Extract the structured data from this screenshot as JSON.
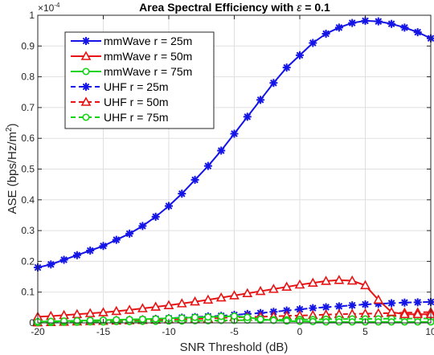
{
  "chart_data": {
    "type": "line",
    "title_prefix": "Area Spectral Efficiency  with ",
    "title_symbol": "ε",
    "title_suffix": " = 0.1",
    "xlabel": "SNR Threshold (dB)",
    "ylabel_main": "ASE (bps/Hz/m",
    "ylabel_sup": "2",
    "ylabel_close": ")",
    "y_multiplier_base": "×10",
    "y_multiplier_exp": "-4",
    "xlim": [
      -20,
      10
    ],
    "ylim": [
      0,
      1
    ],
    "xticks": [
      -20,
      -15,
      -10,
      -5,
      0,
      5,
      10
    ],
    "yticks": [
      0,
      0.1,
      0.2,
      0.3,
      0.4,
      0.5,
      0.6,
      0.7,
      0.8,
      0.9,
      1
    ],
    "ytick_labels": [
      "0",
      "0.1",
      "0.2",
      "0.3",
      "0.4",
      "0.5",
      "0.6",
      "0.7",
      "0.8",
      "0.9",
      "1"
    ],
    "grid": true,
    "legend_position": "top-left",
    "x": [
      -20,
      -19,
      -18,
      -17,
      -16,
      -15,
      -14,
      -13,
      -12,
      -11,
      -10,
      -9,
      -8,
      -7,
      -6,
      -5,
      -4,
      -3,
      -2,
      -1,
      0,
      1,
      2,
      3,
      4,
      5,
      6,
      7,
      8,
      9,
      10
    ],
    "series": [
      {
        "name": "mmWave r = 25m",
        "color": "#1414e6",
        "linestyle": "solid",
        "marker": "asterisk",
        "values": [
          0.18,
          0.19,
          0.205,
          0.22,
          0.235,
          0.25,
          0.27,
          0.29,
          0.315,
          0.345,
          0.38,
          0.42,
          0.465,
          0.51,
          0.56,
          0.615,
          0.67,
          0.725,
          0.78,
          0.83,
          0.87,
          0.91,
          0.94,
          0.96,
          0.975,
          0.982,
          0.98,
          0.972,
          0.96,
          0.945,
          0.925
        ]
      },
      {
        "name": "mmWave r = 50m",
        "color": "#e61414",
        "linestyle": "solid",
        "marker": "triangle",
        "values": [
          0.02,
          0.022,
          0.025,
          0.028,
          0.031,
          0.034,
          0.038,
          0.042,
          0.047,
          0.052,
          0.057,
          0.063,
          0.069,
          0.075,
          0.082,
          0.089,
          0.096,
          0.103,
          0.11,
          0.117,
          0.124,
          0.13,
          0.136,
          0.139,
          0.137,
          0.122,
          0.075,
          0.035,
          0.028,
          0.028,
          0.028
        ]
      },
      {
        "name": "mmWave r = 75m",
        "color": "#14d214",
        "linestyle": "solid",
        "marker": "circle",
        "values": [
          0.004,
          0.005,
          0.006,
          0.007,
          0.008,
          0.009,
          0.01,
          0.011,
          0.012,
          0.013,
          0.015,
          0.016,
          0.018,
          0.019,
          0.021,
          0.022,
          0.018,
          0.012,
          0.008,
          0.006,
          0.005,
          0.004,
          0.003,
          0.003,
          0.003,
          0.003,
          0.003,
          0.003,
          0.003,
          0.003,
          0.003
        ]
      },
      {
        "name": "UHF r = 25m",
        "color": "#1414e6",
        "linestyle": "dashed",
        "marker": "asterisk",
        "values": [
          0.002,
          0.003,
          0.004,
          0.005,
          0.006,
          0.007,
          0.008,
          0.009,
          0.011,
          0.013,
          0.015,
          0.017,
          0.019,
          0.021,
          0.023,
          0.026,
          0.029,
          0.032,
          0.036,
          0.04,
          0.044,
          0.048,
          0.051,
          0.054,
          0.057,
          0.06,
          0.062,
          0.064,
          0.066,
          0.067,
          0.068
        ]
      },
      {
        "name": "UHF r = 50m",
        "color": "#e61414",
        "linestyle": "dashed",
        "marker": "triangle",
        "values": [
          0.001,
          0.002,
          0.003,
          0.004,
          0.005,
          0.006,
          0.007,
          0.008,
          0.009,
          0.01,
          0.011,
          0.012,
          0.013,
          0.014,
          0.016,
          0.018,
          0.019,
          0.02,
          0.021,
          0.023,
          0.024,
          0.025,
          0.027,
          0.028,
          0.029,
          0.03,
          0.031,
          0.032,
          0.033,
          0.034,
          0.035
        ]
      },
      {
        "name": "UHF r = 75m",
        "color": "#14d214",
        "linestyle": "dashed",
        "marker": "circle",
        "values": [
          0.001,
          0.001,
          0.002,
          0.002,
          0.003,
          0.003,
          0.004,
          0.004,
          0.005,
          0.005,
          0.006,
          0.006,
          0.007,
          0.007,
          0.008,
          0.008,
          0.009,
          0.009,
          0.01,
          0.01,
          0.011,
          0.011,
          0.012,
          0.012,
          0.013,
          0.013,
          0.013,
          0.014,
          0.014,
          0.014,
          0.015
        ]
      }
    ]
  }
}
